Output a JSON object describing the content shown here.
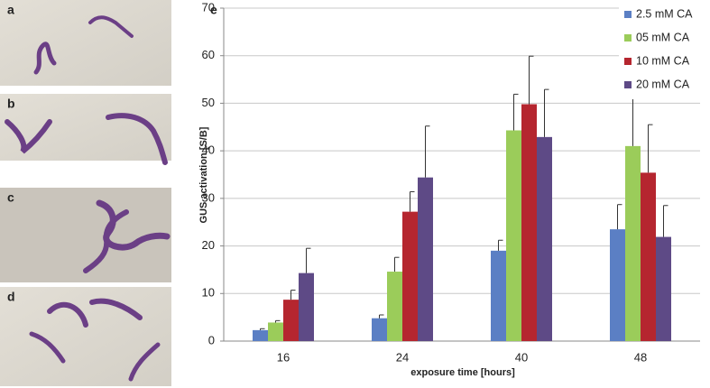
{
  "panels": [
    "a",
    "b",
    "c",
    "d"
  ],
  "chart_data": {
    "type": "bar",
    "panel": "e",
    "x_label": "exposure time [hours]",
    "y_label": "GUS activation [S/B]",
    "categories": [
      "16",
      "24",
      "40",
      "48"
    ],
    "series": [
      {
        "name": "2.5 mM CA",
        "color": "#5b7fc4",
        "values": [
          2.3,
          4.8,
          19,
          23.5
        ],
        "errors": [
          0.3,
          0.7,
          2.2,
          5.2
        ]
      },
      {
        "name": "05 mM CA",
        "color": "#9bcc5a",
        "values": [
          3.9,
          14.6,
          44.3,
          41
        ],
        "errors": [
          0.4,
          3,
          7.6,
          10.8
        ]
      },
      {
        "name": "10 mM CA",
        "color": "#b5262f",
        "values": [
          8.7,
          27.2,
          49.8,
          35.4
        ],
        "errors": [
          2,
          4.2,
          10.1,
          10.1
        ]
      },
      {
        "name": "20 mM CA",
        "color": "#5e4a86",
        "values": [
          14.3,
          34.4,
          42.9,
          21.9
        ],
        "errors": [
          5.2,
          10.8,
          10,
          6.6
        ]
      }
    ],
    "ylim": [
      0,
      70
    ],
    "yticks": [
      0,
      10,
      20,
      30,
      40,
      50,
      60,
      70
    ],
    "grid": true,
    "legend": "top-right"
  }
}
